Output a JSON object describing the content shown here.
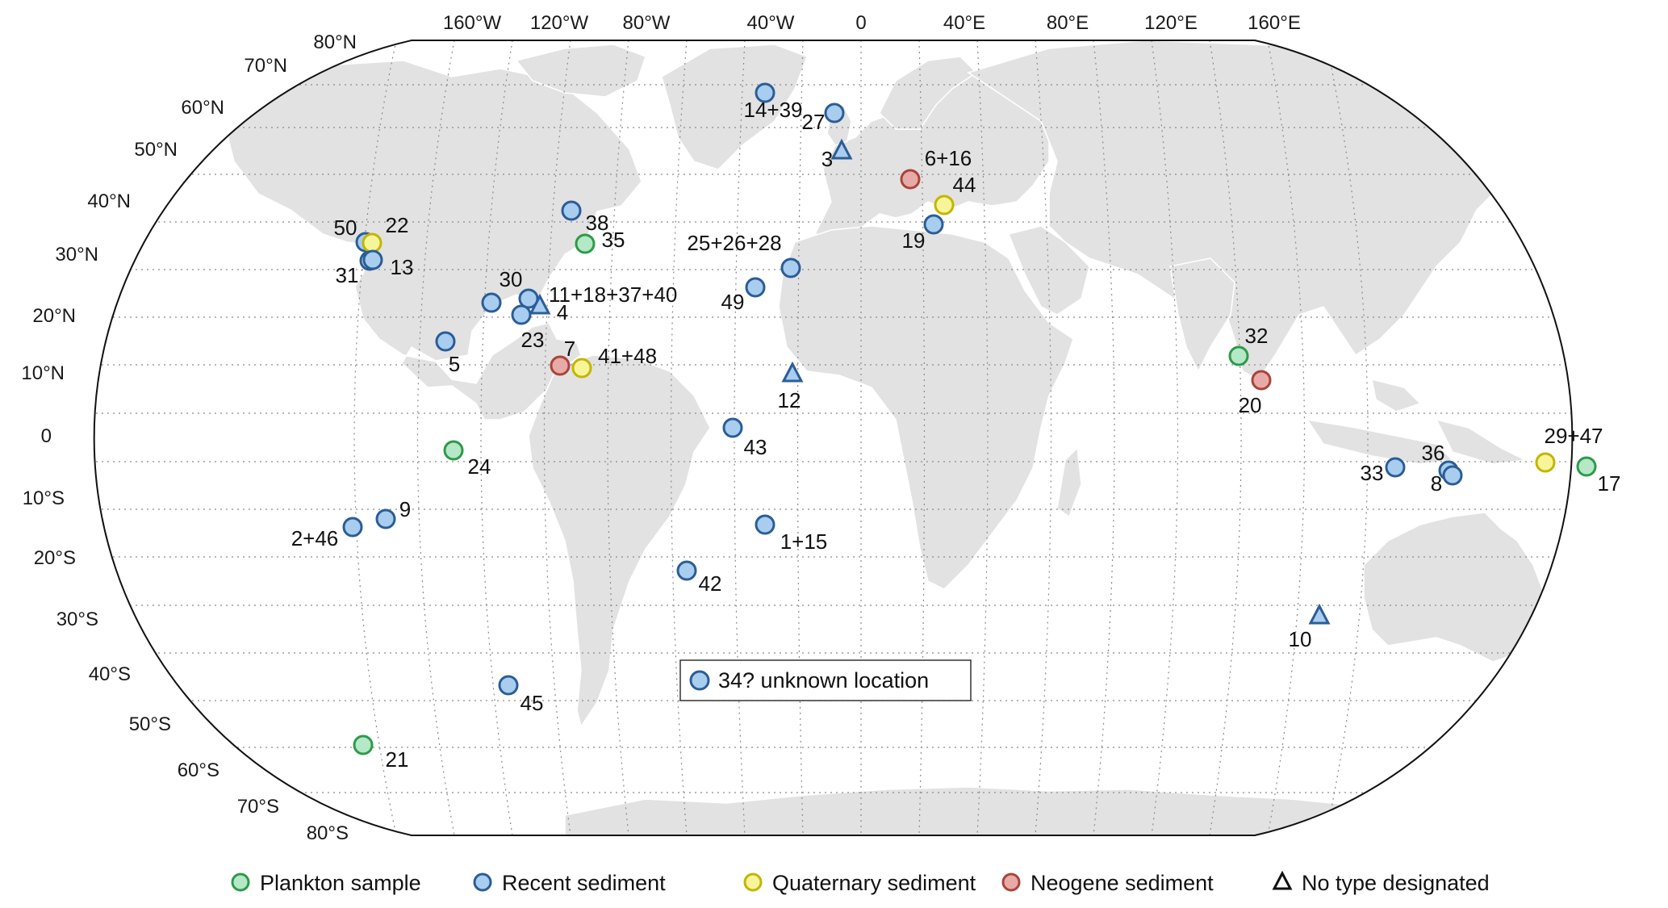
{
  "colors": {
    "plankton": {
      "fill": "#b5e8c6",
      "stroke": "#2e9a4a"
    },
    "recent": {
      "fill": "#a9cdef",
      "stroke": "#2b5d96"
    },
    "quaternary": {
      "fill": "#f7f59a",
      "stroke": "#c2b600"
    },
    "neogene": {
      "fill": "#e8aaa6",
      "stroke": "#a8443c"
    },
    "land": "#e2e2e2",
    "land_border": "#ffffff",
    "graticule": "#8a8a8a"
  },
  "ticks": {
    "lon": [
      "160°W",
      "120°W",
      "80°W",
      "40°W",
      "0",
      "40°E",
      "80°E",
      "120°E",
      "160°E"
    ],
    "lat_n": [
      "80°N",
      "70°N",
      "60°N",
      "50°N",
      "40°N",
      "30°N",
      "20°N",
      "10°N",
      "0"
    ],
    "lat_s": [
      "10°S",
      "20°S",
      "30°S",
      "40°S",
      "50°S",
      "60°S",
      "70°S",
      "80°S"
    ]
  },
  "sites": [
    {
      "label": "14+39",
      "type": "recent",
      "marker": "circle"
    },
    {
      "label": "27",
      "type": "recent",
      "marker": "circle"
    },
    {
      "label": "3",
      "type": "recent",
      "marker": "triangle"
    },
    {
      "label": "6+16",
      "type": "neogene",
      "marker": "circle"
    },
    {
      "label": "44",
      "type": "quaternary",
      "marker": "circle"
    },
    {
      "label": "19",
      "type": "recent",
      "marker": "circle"
    },
    {
      "label": "38",
      "type": "recent",
      "marker": "circle"
    },
    {
      "label": "35",
      "type": "plankton",
      "marker": "circle"
    },
    {
      "label": "25+26+28",
      "type": "recent",
      "marker": "circle"
    },
    {
      "label": "49",
      "type": "recent",
      "marker": "circle"
    },
    {
      "label": "50",
      "type": "recent",
      "marker": "circle"
    },
    {
      "label": "22",
      "type": "quaternary",
      "marker": "circle"
    },
    {
      "label": "31",
      "type": "recent",
      "marker": "circle"
    },
    {
      "label": "13",
      "type": "recent",
      "marker": "circle"
    },
    {
      "label": "30",
      "type": "recent",
      "marker": "circle"
    },
    {
      "label": "11+18+37+40",
      "type": "recent",
      "marker": "circle"
    },
    {
      "label": "4",
      "type": "recent",
      "marker": "triangle"
    },
    {
      "label": "23",
      "type": "recent",
      "marker": "circle"
    },
    {
      "label": "5",
      "type": "recent",
      "marker": "circle"
    },
    {
      "label": "7",
      "type": "neogene",
      "marker": "circle"
    },
    {
      "label": "41+48",
      "type": "quaternary",
      "marker": "circle"
    },
    {
      "label": "12",
      "type": "recent",
      "marker": "triangle"
    },
    {
      "label": "43",
      "type": "recent",
      "marker": "circle"
    },
    {
      "label": "24",
      "type": "plankton",
      "marker": "circle"
    },
    {
      "label": "9",
      "type": "recent",
      "marker": "circle"
    },
    {
      "label": "2+46",
      "type": "recent",
      "marker": "circle"
    },
    {
      "label": "1+15",
      "type": "recent",
      "marker": "circle"
    },
    {
      "label": "42",
      "type": "recent",
      "marker": "circle"
    },
    {
      "label": "45",
      "type": "recent",
      "marker": "circle"
    },
    {
      "label": "21",
      "type": "plankton",
      "marker": "circle"
    },
    {
      "label": "32",
      "type": "plankton",
      "marker": "circle"
    },
    {
      "label": "20",
      "type": "neogene",
      "marker": "circle"
    },
    {
      "label": "33",
      "type": "recent",
      "marker": "circle"
    },
    {
      "label": "36",
      "type": "recent",
      "marker": "circle"
    },
    {
      "label": "8",
      "type": "recent",
      "marker": "circle"
    },
    {
      "label": "29+47",
      "type": "quaternary",
      "marker": "circle"
    },
    {
      "label": "17",
      "type": "plankton",
      "marker": "circle"
    },
    {
      "label": "10",
      "type": "recent",
      "marker": "triangle"
    }
  ],
  "unknown_box": {
    "label": "34? unknown location",
    "type": "recent"
  },
  "legend": [
    {
      "label": "Plankton sample",
      "type": "plankton",
      "marker": "circle"
    },
    {
      "label": "Recent sediment",
      "type": "recent",
      "marker": "circle"
    },
    {
      "label": "Quaternary sediment",
      "type": "quaternary",
      "marker": "circle"
    },
    {
      "label": "Neogene sediment",
      "type": "neogene",
      "marker": "circle"
    },
    {
      "label": "No type designated",
      "type": "none",
      "marker": "triangle"
    }
  ]
}
